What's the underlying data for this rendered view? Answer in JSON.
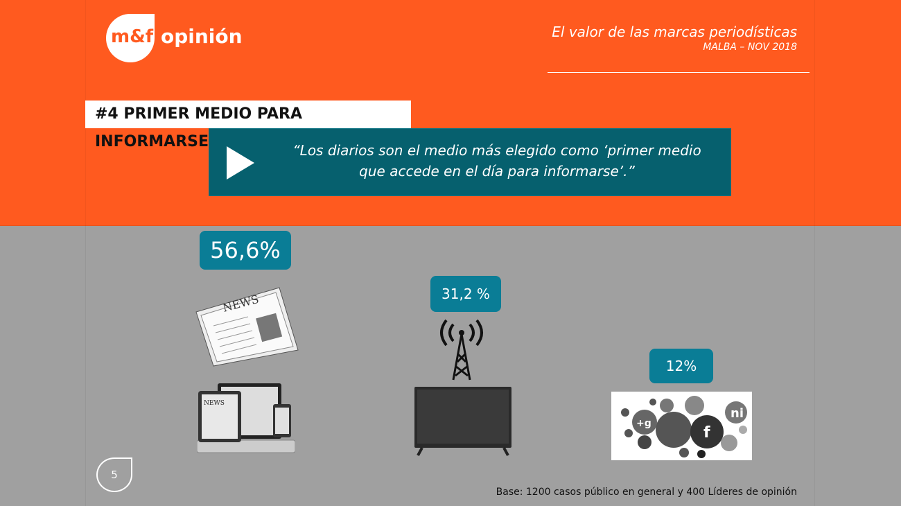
{
  "logo": {
    "mark": "m&f",
    "word": "opinión"
  },
  "header": {
    "title": "El valor de las marcas periodísticas",
    "subtitle": "MALBA – NOV 2018"
  },
  "section_title": "#4 PRIMER MEDIO PARA INFORMARSE",
  "quote": {
    "line1": "“Los diarios son el medio más elegido como ‘primer medio",
    "line2": "que accede en el día para informarse’.”",
    "icon": "play-icon"
  },
  "stats": [
    {
      "media": "diarios",
      "value": "56,6%",
      "icons": [
        "newspaper-icon",
        "devices-icon"
      ]
    },
    {
      "media": "tv-radio",
      "value": "31,2 %",
      "icons": [
        "antenna-icon",
        "tv-icon"
      ]
    },
    {
      "media": "redes-sociales",
      "value": "12%",
      "icons": [
        "social-media-icon"
      ]
    }
  ],
  "colors": {
    "orange": "#ff5a1f",
    "grey": "#a0a0a0",
    "teal": "#06606e",
    "badge": "#0a7d96"
  },
  "page_number": "5",
  "footnote": "Base: 1200 casos público en general y 400 Líderes de opinión"
}
